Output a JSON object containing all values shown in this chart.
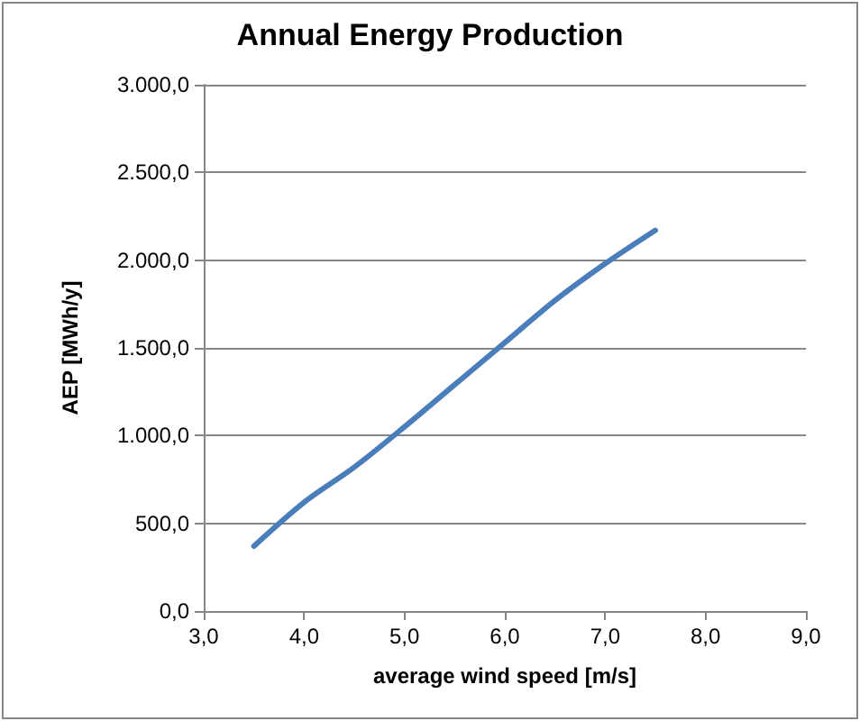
{
  "chart_data": {
    "type": "line",
    "title": "Annual Energy Production",
    "xlabel": "average wind speed [m/s]",
    "ylabel": "AEP [MWh/y]",
    "x": [
      3.5,
      4.0,
      4.5,
      5.0,
      5.5,
      6.0,
      6.5,
      7.0,
      7.5
    ],
    "series": [
      {
        "color": "#4a7ebb",
        "values": [
          370,
          620,
          820,
          1050,
          1290,
          1530,
          1770,
          1980,
          2170
        ]
      }
    ],
    "xlim": [
      3,
      9
    ],
    "xticks": [
      {
        "value": 3,
        "label": "3,0"
      },
      {
        "value": 4,
        "label": "4,0"
      },
      {
        "value": 5,
        "label": "5,0"
      },
      {
        "value": 6,
        "label": "6,0"
      },
      {
        "value": 7,
        "label": "7,0"
      },
      {
        "value": 8,
        "label": "8,0"
      },
      {
        "value": 9,
        "label": "9,0"
      }
    ],
    "ylim": [
      0,
      3000
    ],
    "yticks": [
      {
        "value": 0,
        "label": "0,0"
      },
      {
        "value": 500,
        "label": "500,0"
      },
      {
        "value": 1000,
        "label": "1.000,0"
      },
      {
        "value": 1500,
        "label": "1.500,0"
      },
      {
        "value": 2000,
        "label": "2.000,0"
      },
      {
        "value": 2500,
        "label": "2.500,0"
      },
      {
        "value": 3000,
        "label": "3.000,0"
      }
    ],
    "grid": "y",
    "marker": "none",
    "line_style": "solid"
  }
}
